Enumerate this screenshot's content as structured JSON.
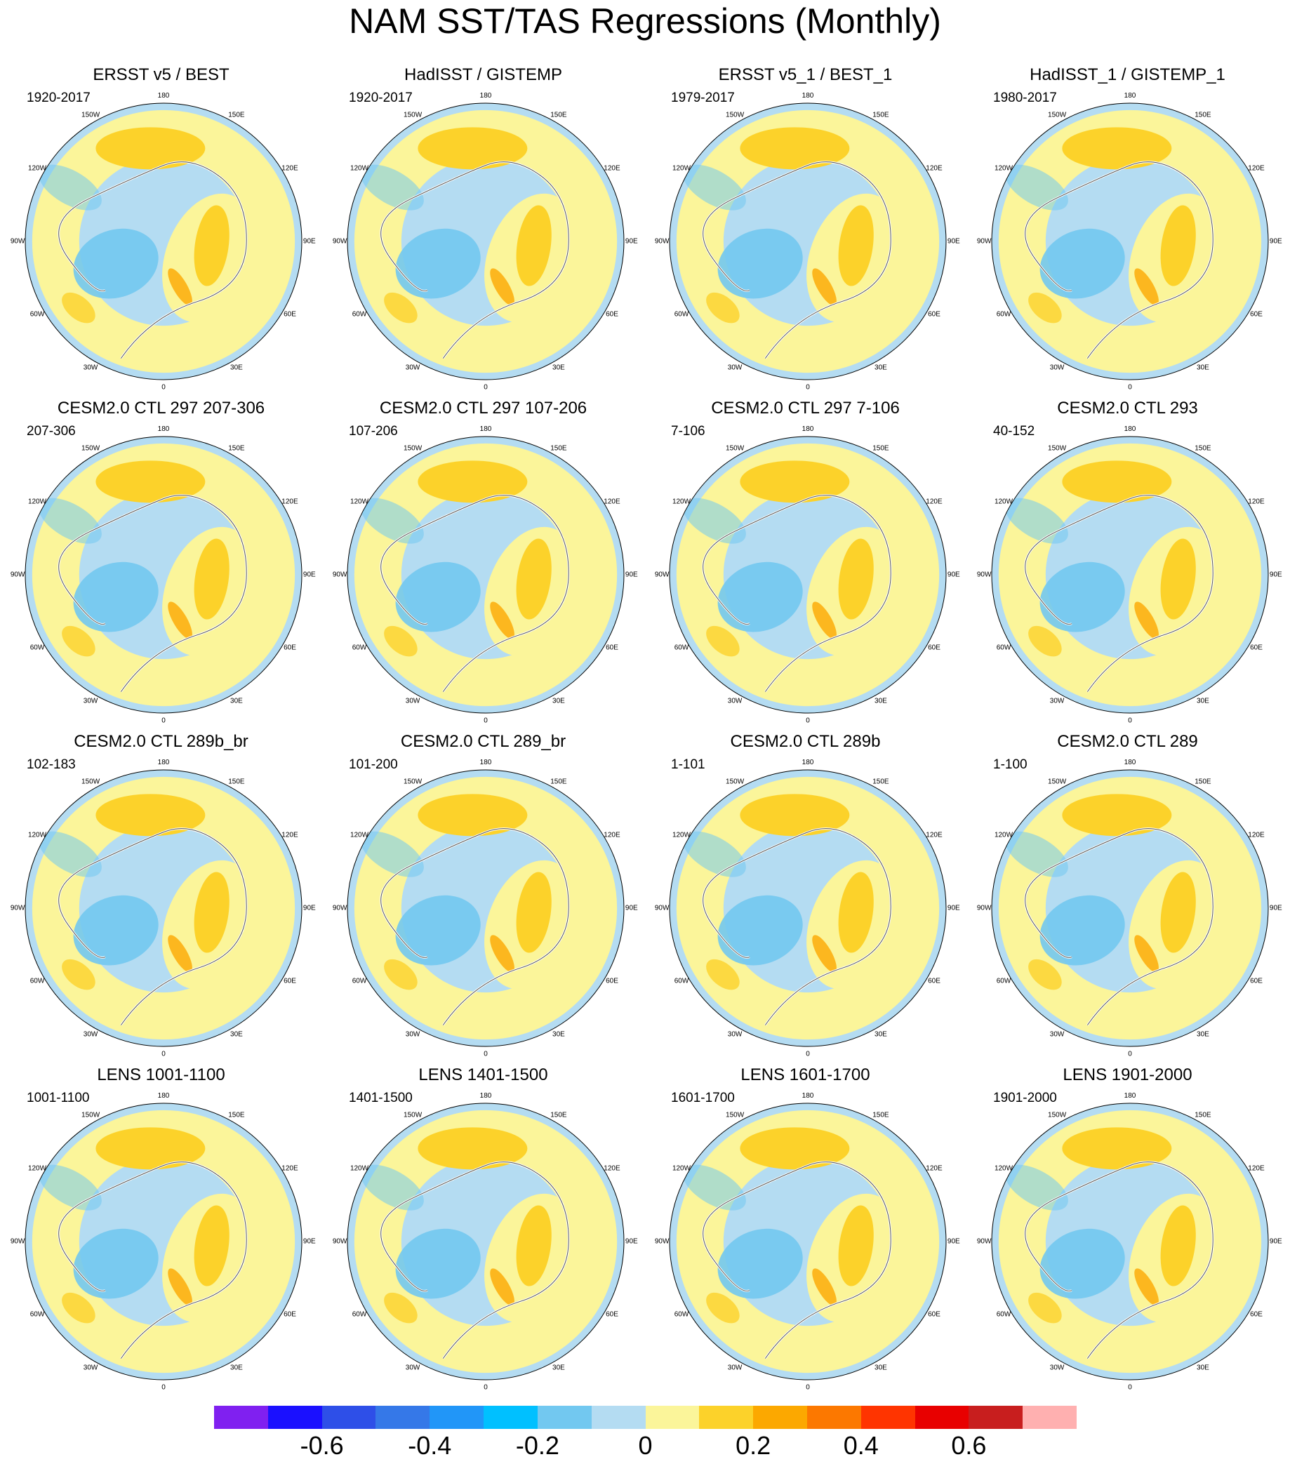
{
  "title": "NAM SST/TAS Regressions (Monthly)",
  "longitude_labels": [
    "180",
    "150E",
    "120E",
    "90E",
    "60E",
    "30E",
    "0",
    "30W",
    "60W",
    "90W",
    "120W",
    "150W"
  ],
  "panels": [
    {
      "title": "ERSST v5 / BEST",
      "period": "1920-2017"
    },
    {
      "title": "HadISST / GISTEMP",
      "period": "1920-2017"
    },
    {
      "title": "ERSST v5_1 / BEST_1",
      "period": "1979-2017"
    },
    {
      "title": "HadISST_1 / GISTEMP_1",
      "period": "1980-2017"
    },
    {
      "title": "CESM2.0 CTL 297 207-306",
      "period": "207-306"
    },
    {
      "title": "CESM2.0 CTL 297 107-206",
      "period": "107-206"
    },
    {
      "title": "CESM2.0 CTL 297 7-106",
      "period": "7-106"
    },
    {
      "title": "CESM2.0 CTL 293",
      "period": "40-152"
    },
    {
      "title": "CESM2.0 CTL 289b_br",
      "period": "102-183"
    },
    {
      "title": "CESM2.0 CTL 289_br",
      "period": "101-200"
    },
    {
      "title": "CESM2.0 CTL 289b",
      "period": "1-101"
    },
    {
      "title": "CESM2.0 CTL 289",
      "period": "1-100"
    },
    {
      "title": "LENS 1001-1100",
      "period": "1001-1100"
    },
    {
      "title": "LENS 1401-1500",
      "period": "1401-1500"
    },
    {
      "title": "LENS 1601-1700",
      "period": "1601-1700"
    },
    {
      "title": "LENS 1901-2000",
      "period": "1901-2000"
    }
  ],
  "colorbar": {
    "colors": [
      "#8020f0",
      "#1a10ff",
      "#2e4fe8",
      "#3578e8",
      "#2196f8",
      "#00c0ff",
      "#72c8f0",
      "#b4dcf2",
      "#fbf59a",
      "#fcd22a",
      "#fca800",
      "#fc7800",
      "#ff3400",
      "#e80000",
      "#c81e1e",
      "#ffb0b0"
    ],
    "labels": [
      "-0.6",
      "-0.4",
      "-0.2",
      "0",
      "0.2",
      "0.4",
      "0.6"
    ],
    "label_values": [
      -0.6,
      -0.4,
      -0.2,
      0,
      0.2,
      0.4,
      0.6
    ],
    "min": -0.8,
    "max": 0.8
  }
}
